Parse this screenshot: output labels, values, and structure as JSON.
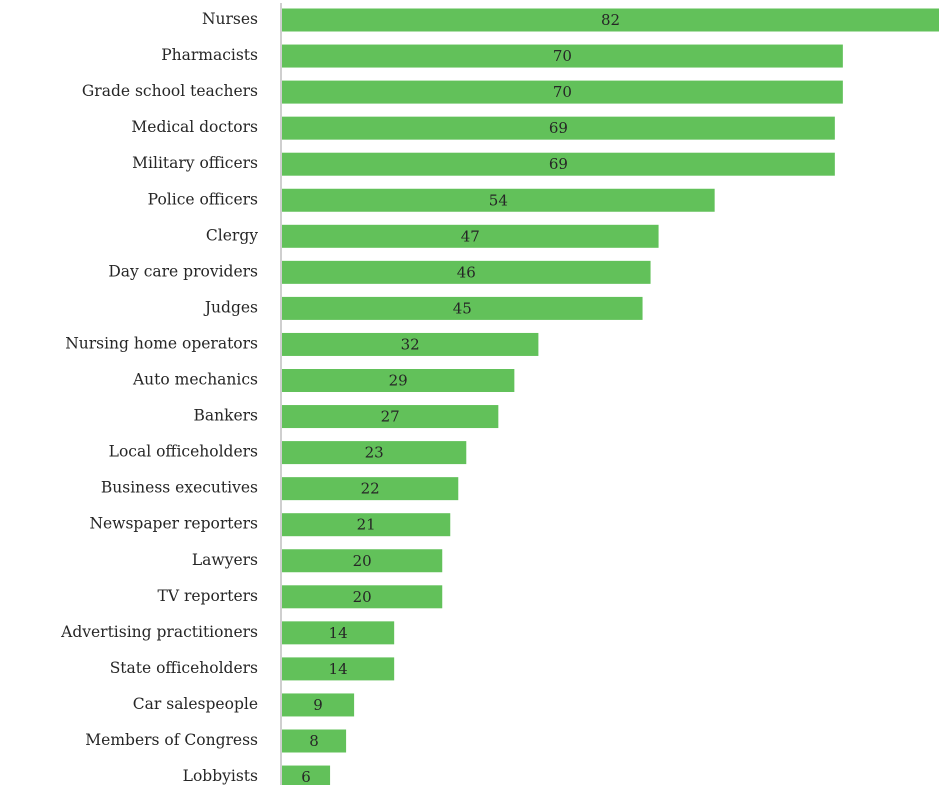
{
  "chart_data": {
    "type": "bar",
    "orientation": "horizontal",
    "title": "",
    "xlabel": "",
    "ylabel": "",
    "xlim": [
      0,
      82
    ],
    "grid": false,
    "legend": "none",
    "bar_color": "#62c15a",
    "axis_color": "#bfbfbf",
    "categories": [
      "Nurses",
      "Pharmacists",
      "Grade school teachers",
      "Medical doctors",
      "Military officers",
      "Police officers",
      "Clergy",
      "Day care providers",
      "Judges",
      "Nursing home operators",
      "Auto mechanics",
      "Bankers",
      "Local officeholders",
      "Business executives",
      "Newspaper reporters",
      "Lawyers",
      "TV reporters",
      "Advertising practitioners",
      "State officeholders",
      "Car salespeople",
      "Members of Congress",
      "Lobbyists"
    ],
    "values": [
      82,
      70,
      70,
      69,
      69,
      54,
      47,
      46,
      45,
      32,
      29,
      27,
      23,
      22,
      21,
      20,
      20,
      14,
      14,
      9,
      8,
      6
    ],
    "value_labels": [
      "82",
      "70",
      "70",
      "69",
      "69",
      "54",
      "47",
      "46",
      "45",
      "32",
      "29",
      "27",
      "23",
      "22",
      "21",
      "20",
      "20",
      "14",
      "14",
      "9",
      "8",
      "6"
    ]
  }
}
